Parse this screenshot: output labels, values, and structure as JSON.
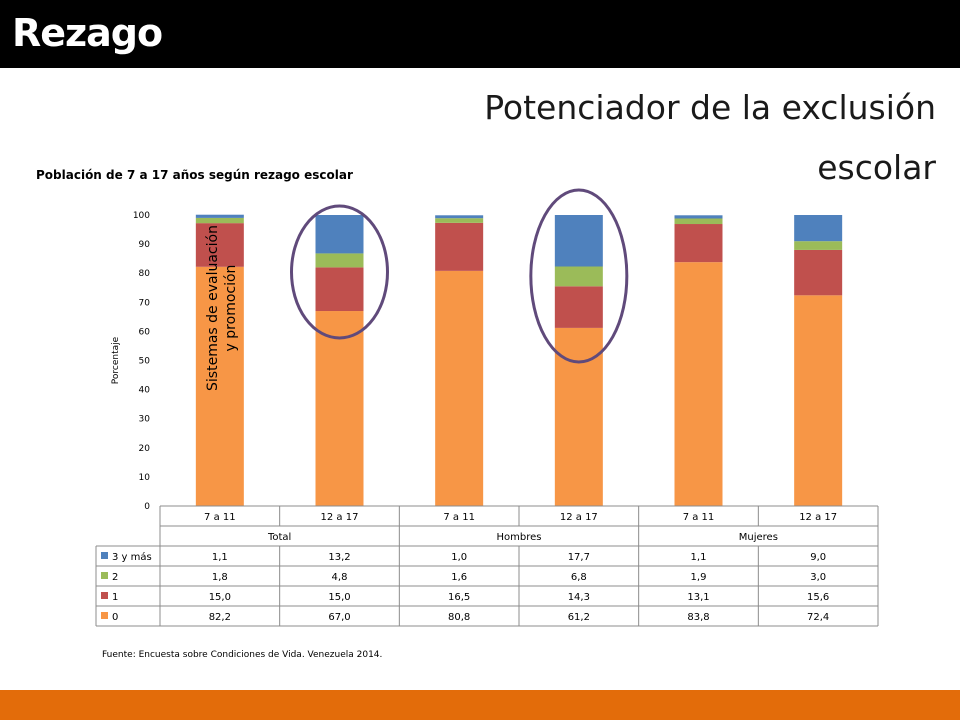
{
  "header": {
    "title": "Rezago"
  },
  "subtitle": "Potenciador de la exclusión escolar",
  "chart_title": "Población de 7 a 17 años según rezago escolar",
  "annotation": "Sistemas de evaluación y promoción",
  "source": "Fuente: Encuesta sobre Condiciones de Vida. Venezuela 2014.",
  "colors": {
    "bar_0": "#F79646",
    "bar_1": "#C0504D",
    "bar_2": "#9BBB59",
    "bar_3": "#4F81BD",
    "accent": "#E36C0A",
    "circle": "#604A7B"
  },
  "chart_data": {
    "type": "bar",
    "stacked": true,
    "ylabel": "Porcentaje",
    "ylim": [
      0,
      100
    ],
    "yticks": [
      0,
      10,
      20,
      30,
      40,
      50,
      60,
      70,
      80,
      90,
      100
    ],
    "categories": [
      "7 a 11",
      "12 a 17",
      "7 a 11",
      "12 a 17",
      "7 a 11",
      "12 a 17"
    ],
    "groups": [
      "Total",
      "Hombres",
      "Mujeres"
    ],
    "series": [
      {
        "name": "3 y más",
        "values": [
          1.1,
          13.2,
          1.0,
          17.7,
          1.1,
          9.0
        ],
        "labels": [
          "1,1",
          "13,2",
          "1,0",
          "17,7",
          "1,1",
          "9,0"
        ]
      },
      {
        "name": "2",
        "values": [
          1.8,
          4.8,
          1.6,
          6.8,
          1.9,
          3.0
        ],
        "labels": [
          "1,8",
          "4,8",
          "1,6",
          "6,8",
          "1,9",
          "3,0"
        ]
      },
      {
        "name": "1",
        "values": [
          15.0,
          15.0,
          16.5,
          14.3,
          13.1,
          15.6
        ],
        "labels": [
          "15,0",
          "15,0",
          "16,5",
          "14,3",
          "13,1",
          "15,6"
        ]
      },
      {
        "name": "0",
        "values": [
          82.2,
          67.0,
          80.8,
          61.2,
          83.8,
          72.4
        ],
        "labels": [
          "82,2",
          "67,0",
          "80,8",
          "61,2",
          "83,8",
          "72,4"
        ]
      }
    ],
    "highlighted": [
      1,
      3
    ]
  }
}
